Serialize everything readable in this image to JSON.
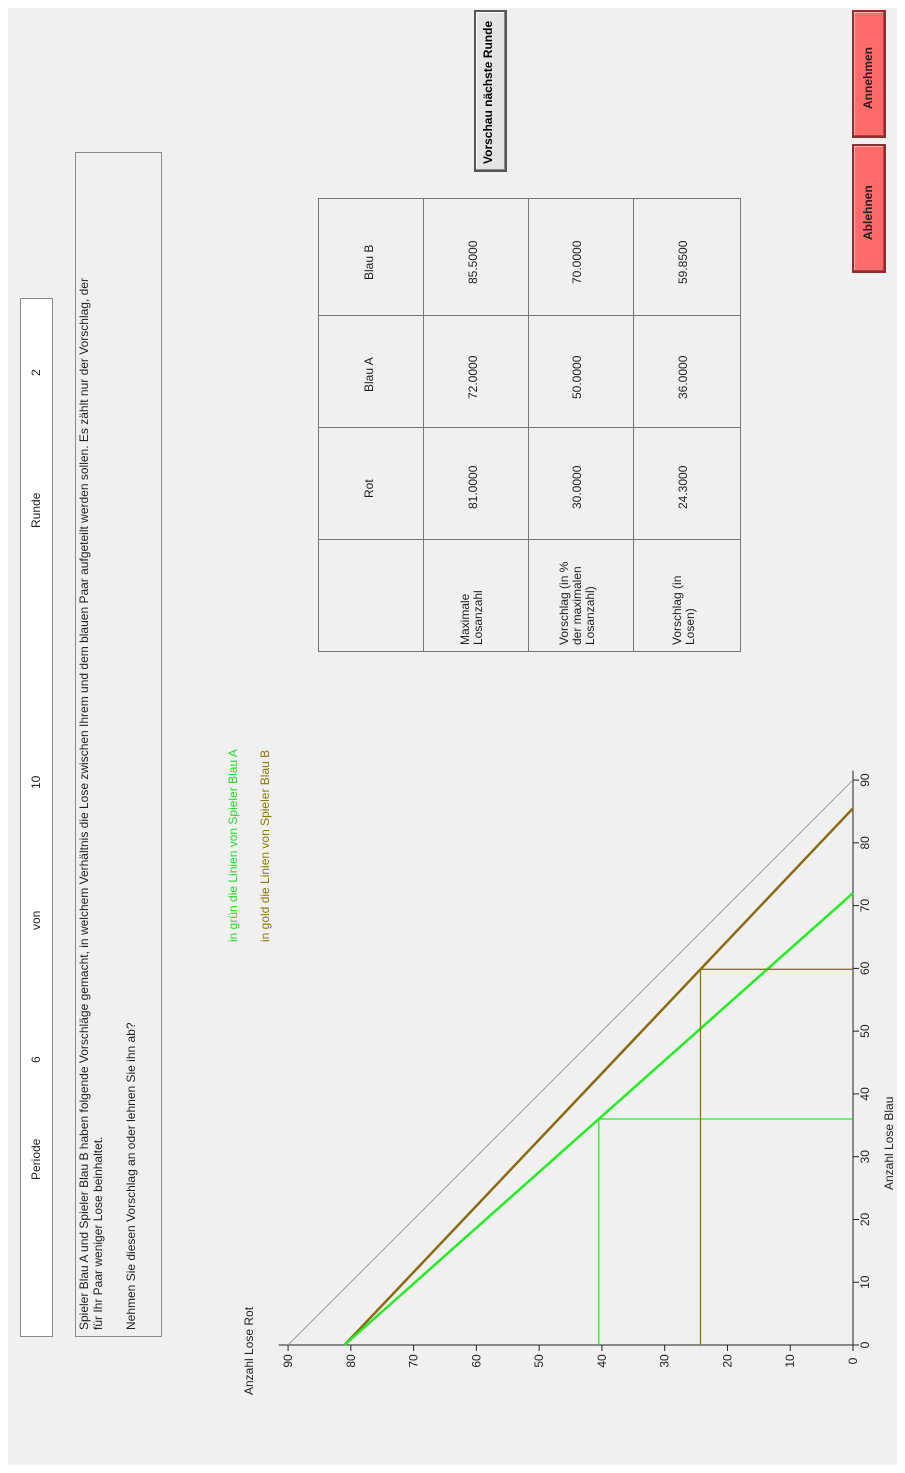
{
  "header": {
    "periode_label": "Periode",
    "periode_value": "6",
    "von_label": "von",
    "von_value": "10",
    "runde_label": "Runde",
    "runde_value": "2"
  },
  "message": {
    "line1": "Spieler Blau A und Spieler Blau B haben folgende Vorschläge gemacht, in welchem Verhältnis die Lose zwischen Ihrem und dem blauen Paar aufgeteilt werden sollen. Es zählt nur der Vorschlag, der",
    "line2": "für Ihr Paar weniger Lose beinhaltet.",
    "question": "Nehmen Sie diesen Vorschlag an oder lehnen Sie ihn ab?"
  },
  "buttons": {
    "preview": "Vorschau nächste Runde",
    "accept": "Annehmen",
    "reject": "Ablehnen"
  },
  "table": {
    "columns": [
      "",
      "Rot",
      "Blau A",
      "Blau B"
    ],
    "rows": [
      {
        "label": "Maximale Losanzahl",
        "label_lines": [
          "Maximale",
          "Losanzahl"
        ],
        "values": [
          "81.0000",
          "72.0000",
          "85.5000"
        ]
      },
      {
        "label": "Vorschlag (in % der maximalen Losanzahl)",
        "label_lines": [
          "Vorschlag (in %",
          "der maximalen",
          "Losanzahl)"
        ],
        "values": [
          "30.0000",
          "50.0000",
          "70.0000"
        ]
      },
      {
        "label": "Vorschlag (in Losen)",
        "label_lines": [
          "Vorschlag (in",
          "Losen)"
        ],
        "values": [
          "24.3000",
          "36.0000",
          "59.8500"
        ]
      }
    ]
  },
  "legend": {
    "green": "in grün die Linien von Spieler Blau A",
    "gold": "in gold die Linien von Spieler Blau B"
  },
  "colors": {
    "green": "#22ee22",
    "gold": "#8b7a00",
    "gold_dark": "#7a5a10",
    "button_red": "#ff6b6b"
  },
  "chart_data": {
    "type": "line",
    "xlabel": "Anzahl Lose Blau",
    "ylabel": "Anzahl Lose Rot",
    "xlim": [
      0,
      90
    ],
    "ylim": [
      0,
      90
    ],
    "xticks": [
      0,
      10,
      20,
      30,
      40,
      50,
      60,
      70,
      80,
      90
    ],
    "yticks": [
      0,
      10,
      20,
      30,
      40,
      50,
      60,
      70,
      80,
      90
    ],
    "series": [
      {
        "color": "#9a9a9a",
        "points": [
          [
            0,
            90
          ],
          [
            90,
            0
          ]
        ]
      },
      {
        "color": "#8b6a10",
        "points": [
          [
            0,
            81
          ],
          [
            85.5,
            0
          ]
        ]
      },
      {
        "color": "#22ee22",
        "points": [
          [
            0,
            81
          ],
          [
            72,
            0
          ]
        ]
      }
    ],
    "guides": [
      {
        "color": "#22ee22",
        "x": 36.0,
        "y": 40.5
      },
      {
        "color": "#8b7a00",
        "x": 59.85,
        "y": 24.3
      }
    ]
  }
}
